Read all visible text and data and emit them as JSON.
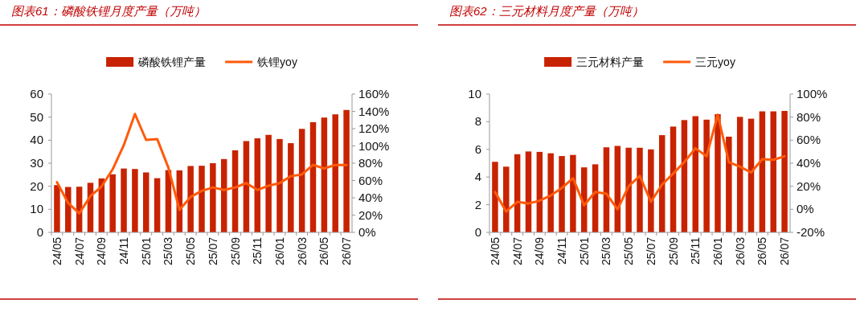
{
  "chart_data": [
    {
      "type": "bar",
      "title": "图表61：磷酸铁锂月度产量（万吨）",
      "legend": "top",
      "categories": [
        "24/05",
        null,
        "24/07",
        null,
        "24/09",
        null,
        "24/11",
        null,
        "25/01",
        null,
        "25/03",
        null,
        "25/05",
        null,
        "25/07",
        null,
        "25/09",
        null,
        "25/11",
        null,
        "26/01",
        null,
        "26/03",
        null,
        "26/05",
        null,
        "26/07"
      ],
      "series": [
        {
          "name": "磷酸铁锂产量",
          "color": "#c82300",
          "values": [
            20.5,
            19.7,
            19.8,
            21.5,
            23.4,
            25.2,
            27.7,
            27.5,
            26.0,
            23.5,
            27.0,
            26.9,
            28.8,
            28.9,
            30.0,
            31.8,
            35.6,
            39.6,
            40.8,
            42.3,
            40.5,
            38.7,
            44.9,
            47.8,
            49.8,
            51.2,
            53.1
          ]
        },
        {
          "name": "铁锂yoy",
          "type": "line",
          "axis": "y2",
          "color": "#ff5a0a",
          "values": [
            58,
            34,
            22,
            42,
            53,
            73,
            101,
            137,
            107,
            108,
            75,
            26,
            41,
            48,
            52,
            49,
            52,
            57,
            49,
            54,
            57,
            65,
            67,
            78,
            74,
            78,
            78
          ]
        }
      ],
      "ylim": [
        0,
        60
      ],
      "yticks": [
        0,
        10,
        20,
        30,
        40,
        50,
        60
      ],
      "y2lim": [
        0,
        160
      ],
      "y2ticks": [
        {
          "value": 0,
          "label": "0%"
        },
        {
          "value": 20,
          "label": "20%"
        },
        {
          "value": 40,
          "label": "40%"
        },
        {
          "value": 60,
          "label": "60%"
        },
        {
          "value": 80,
          "label": "80%"
        },
        {
          "value": 100,
          "label": "100%"
        },
        {
          "value": 120,
          "label": "120%"
        },
        {
          "value": 140,
          "label": "140%"
        },
        {
          "value": 160,
          "label": "160%"
        }
      ]
    },
    {
      "type": "bar",
      "title": "图表62：三元材料月度产量（万吨）",
      "legend": "top",
      "categories": [
        "24/05",
        null,
        "24/07",
        null,
        "24/09",
        null,
        "24/11",
        null,
        "25/01",
        null,
        "25/03",
        null,
        "25/05",
        null,
        "25/07",
        null,
        "25/09",
        null,
        "25/11",
        null,
        "26/01",
        null,
        "26/03",
        null,
        "26/05",
        null,
        "26/07"
      ],
      "series": [
        {
          "name": "三元材料产量",
          "color": "#c82300",
          "values": [
            5.1,
            4.75,
            5.65,
            5.85,
            5.82,
            5.72,
            5.52,
            5.6,
            4.7,
            4.92,
            6.15,
            6.25,
            6.12,
            6.12,
            6.0,
            7.03,
            7.65,
            8.12,
            8.4,
            8.15,
            8.55,
            6.92,
            8.35,
            8.22,
            8.75,
            8.75,
            8.78
          ]
        },
        {
          "name": "三元yoy",
          "type": "line",
          "axis": "y2",
          "color": "#ff5a0a",
          "values": [
            15,
            -2,
            6.5,
            5,
            7.5,
            12,
            18.5,
            27,
            3.5,
            15,
            13.5,
            0,
            20,
            29,
            6.5,
            21.5,
            31,
            41,
            53,
            46,
            82,
            41,
            37,
            32,
            43.5,
            43,
            46
          ]
        }
      ],
      "ylim": [
        0,
        10
      ],
      "yticks": [
        0,
        2,
        4,
        6,
        8,
        10
      ],
      "y2lim": [
        -20,
        100
      ],
      "y2ticks": [
        {
          "value": -20,
          "label": "-20%"
        },
        {
          "value": 0,
          "label": "0%"
        },
        {
          "value": 20,
          "label": "20%"
        },
        {
          "value": 40,
          "label": "40%"
        },
        {
          "value": 60,
          "label": "60%"
        },
        {
          "value": 80,
          "label": "80%"
        },
        {
          "value": 100,
          "label": "100%"
        }
      ]
    }
  ]
}
